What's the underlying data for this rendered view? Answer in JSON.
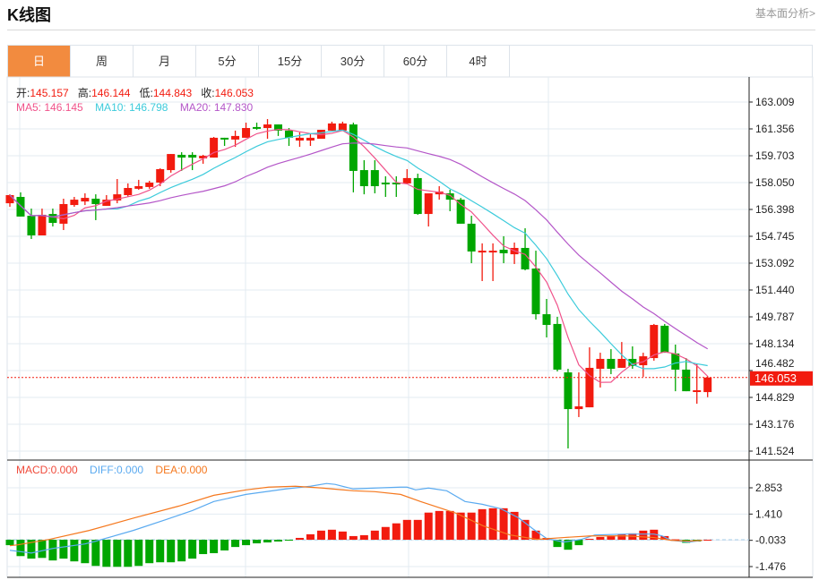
{
  "header": {
    "title": "K线图",
    "link": "基本面分析>"
  },
  "tabs": [
    {
      "label": "日",
      "active": true
    },
    {
      "label": "周"
    },
    {
      "label": "月"
    },
    {
      "label": "5分"
    },
    {
      "label": "15分"
    },
    {
      "label": "30分"
    },
    {
      "label": "60分"
    },
    {
      "label": "4时"
    }
  ],
  "ohlc_legend": {
    "open_label": "开:",
    "open": "145.157",
    "high_label": "高:",
    "high": "146.144",
    "low_label": "低:",
    "low": "144.843",
    "close_label": "收:",
    "close": "146.053"
  },
  "ma_legend": {
    "ma5": "MA5: 146.145",
    "ma10": "MA10: 146.798",
    "ma20": "MA20: 147.830"
  },
  "macd_legend": {
    "macd": "MACD:0.000",
    "diff": "DIFF:0.000",
    "dea": "DEA:0.000"
  },
  "colors": {
    "up": "#f21b0f",
    "down": "#00a600",
    "ma5": "#f0528a",
    "ma10": "#3ccbdb",
    "ma20": "#b456c8",
    "dif": "#5aaaf0",
    "dea": "#f5781e",
    "accent": "#f28b3f"
  },
  "chart_data": {
    "type": "candlestick",
    "price_ticks": [
      "163.009",
      "161.356",
      "159.703",
      "158.050",
      "156.398",
      "154.745",
      "153.092",
      "151.440",
      "149.787",
      "148.134",
      "146.482",
      "144.829",
      "143.176",
      "141.524"
    ],
    "price_range": [
      141.524,
      163.009
    ],
    "current_price": "146.053",
    "macd_ticks": [
      "2.853",
      "1.410",
      "-0.033",
      "-1.476"
    ],
    "macd_range": [
      -1.476,
      2.853
    ],
    "candles": [
      [
        156.78,
        157.33,
        156.56,
        157.28
      ],
      [
        157.17,
        157.45,
        155.96,
        155.96
      ],
      [
        156.01,
        156.45,
        154.58,
        154.8
      ],
      [
        154.8,
        156.45,
        154.8,
        156.07
      ],
      [
        156.12,
        156.45,
        155.35,
        155.57
      ],
      [
        155.52,
        157.06,
        155.13,
        156.73
      ],
      [
        156.67,
        157.17,
        156.56,
        157.0
      ],
      [
        156.89,
        157.39,
        156.67,
        157.11
      ],
      [
        157.06,
        157.33,
        155.74,
        156.73
      ],
      [
        156.62,
        157.28,
        156.62,
        157.0
      ],
      [
        156.95,
        158.27,
        156.78,
        157.33
      ],
      [
        157.28,
        158.0,
        157.17,
        157.72
      ],
      [
        157.67,
        158.22,
        157.61,
        157.83
      ],
      [
        157.78,
        158.16,
        157.67,
        158.05
      ],
      [
        158.05,
        158.93,
        157.83,
        158.88
      ],
      [
        158.82,
        159.81,
        158.66,
        159.81
      ],
      [
        159.76,
        159.92,
        158.77,
        159.59
      ],
      [
        159.76,
        159.92,
        158.82,
        159.59
      ],
      [
        159.54,
        159.76,
        159.21,
        159.7
      ],
      [
        159.59,
        160.86,
        159.59,
        160.81
      ],
      [
        160.81,
        160.81,
        160.31,
        160.75
      ],
      [
        160.7,
        161.25,
        160.25,
        160.92
      ],
      [
        160.81,
        161.74,
        160.81,
        161.41
      ],
      [
        161.47,
        161.74,
        161.3,
        161.41
      ],
      [
        161.41,
        161.96,
        160.75,
        161.63
      ],
      [
        161.63,
        161.63,
        160.92,
        161.25
      ],
      [
        161.25,
        161.41,
        160.31,
        160.81
      ],
      [
        160.64,
        161.14,
        160.25,
        160.81
      ],
      [
        160.64,
        161.08,
        160.31,
        160.81
      ],
      [
        160.75,
        161.3,
        160.75,
        161.3
      ],
      [
        161.25,
        161.8,
        161.25,
        161.69
      ],
      [
        161.25,
        161.8,
        161.25,
        161.69
      ],
      [
        161.63,
        161.74,
        157.45,
        158.77
      ],
      [
        158.82,
        159.43,
        157.33,
        157.83
      ],
      [
        158.82,
        159.43,
        157.39,
        157.83
      ],
      [
        158.05,
        158.44,
        157.17,
        157.94
      ],
      [
        158.05,
        158.44,
        157.17,
        157.94
      ],
      [
        158.0,
        158.88,
        158.0,
        158.33
      ],
      [
        158.33,
        158.6,
        156.07,
        156.12
      ],
      [
        156.12,
        157.39,
        155.35,
        157.39
      ],
      [
        157.33,
        157.83,
        157.0,
        157.5
      ],
      [
        157.39,
        157.61,
        156.29,
        157.0
      ],
      [
        157.0,
        157.11,
        155.52,
        155.52
      ],
      [
        155.52,
        156.01,
        153.09,
        153.81
      ],
      [
        153.75,
        154.31,
        151.99,
        153.86
      ],
      [
        153.75,
        154.31,
        151.99,
        153.86
      ],
      [
        153.92,
        154.75,
        153.09,
        153.7
      ],
      [
        153.64,
        154.36,
        153.04,
        154.03
      ],
      [
        154.03,
        155.24,
        152.65,
        152.71
      ],
      [
        152.76,
        153.86,
        149.62,
        149.95
      ],
      [
        149.95,
        150.89,
        148.52,
        149.29
      ],
      [
        149.35,
        149.79,
        146.43,
        146.54
      ],
      [
        146.37,
        146.59,
        141.69,
        144.11
      ],
      [
        144.11,
        146.37,
        143.62,
        144.28
      ],
      [
        144.22,
        147.91,
        144.22,
        146.65
      ],
      [
        146.59,
        147.58,
        145.44,
        147.2
      ],
      [
        147.2,
        147.8,
        146.26,
        146.59
      ],
      [
        146.65,
        148.24,
        146.65,
        147.2
      ],
      [
        147.2,
        147.97,
        146.59,
        146.76
      ],
      [
        146.81,
        147.58,
        146.1,
        147.36
      ],
      [
        147.25,
        149.35,
        147.09,
        149.29
      ],
      [
        149.24,
        149.35,
        147.58,
        147.58
      ],
      [
        147.53,
        148.08,
        145.21,
        146.54
      ],
      [
        146.54,
        147.25,
        145.21,
        145.21
      ],
      [
        145.16,
        146.87,
        144.44,
        145.27
      ],
      [
        145.157,
        146.144,
        144.843,
        146.053
      ]
    ],
    "macd_hist": [
      -0.3,
      -0.9,
      -1.04,
      -1.0,
      -1.14,
      -1.04,
      -1.19,
      -1.29,
      -1.44,
      -1.49,
      -1.49,
      -1.49,
      -1.44,
      -1.29,
      -1.24,
      -1.24,
      -1.19,
      -1.04,
      -0.79,
      -0.74,
      -0.59,
      -0.4,
      -0.3,
      -0.2,
      -0.15,
      -0.1,
      -0.03,
      0.1,
      0.3,
      0.5,
      0.55,
      0.45,
      0.2,
      0.25,
      0.5,
      0.7,
      0.9,
      1.09,
      1.09,
      1.49,
      1.58,
      1.58,
      1.49,
      1.49,
      1.68,
      1.73,
      1.73,
      1.53,
      1.09,
      0.5,
      0.1,
      -0.4,
      -0.55,
      -0.3,
      0.05,
      0.15,
      0.2,
      0.3,
      0.35,
      0.5,
      0.55,
      0.2,
      0.02,
      -0.17,
      -0.1,
      0.0
    ],
    "dif": [
      [
        0,
        -0.58
      ],
      [
        2,
        -0.73
      ],
      [
        4,
        -0.48
      ],
      [
        7,
        -0.23
      ],
      [
        8,
        -0.08
      ],
      [
        11.5,
        0.51
      ],
      [
        14.5,
        1.1
      ],
      [
        17,
        1.6
      ],
      [
        19,
        2.1
      ],
      [
        22,
        2.49
      ],
      [
        25.7,
        2.79
      ],
      [
        28,
        2.94
      ],
      [
        29.5,
        3.09
      ],
      [
        30.3,
        3.04
      ],
      [
        32,
        2.79
      ],
      [
        34,
        2.84
      ],
      [
        36.4,
        2.89
      ],
      [
        37,
        2.89
      ],
      [
        37.8,
        2.74
      ],
      [
        39,
        2.84
      ],
      [
        40.7,
        2.69
      ],
      [
        42.4,
        2.1
      ],
      [
        44,
        1.95
      ],
      [
        45.75,
        1.7
      ],
      [
        47.4,
        1.2
      ],
      [
        48.7,
        0.61
      ],
      [
        50,
        0.07
      ],
      [
        51.6,
        -0.13
      ],
      [
        53.25,
        0.02
      ],
      [
        54.5,
        0.26
      ],
      [
        57.4,
        0.31
      ],
      [
        60,
        0.31
      ],
      [
        60.75,
        0.21
      ],
      [
        61.6,
        -0.03
      ],
      [
        63.25,
        -0.13
      ],
      [
        64.5,
        -0.03
      ]
    ],
    "dea": [
      [
        0,
        -0.33
      ],
      [
        0.75,
        -0.28
      ],
      [
        3.7,
        0.02
      ],
      [
        7.4,
        0.51
      ],
      [
        11.6,
        1.2
      ],
      [
        15.75,
        1.85
      ],
      [
        19,
        2.44
      ],
      [
        22,
        2.74
      ],
      [
        24.1,
        2.89
      ],
      [
        26.6,
        2.94
      ],
      [
        29.1,
        2.84
      ],
      [
        32,
        2.69
      ],
      [
        34,
        2.64
      ],
      [
        36.4,
        2.49
      ],
      [
        38.25,
        2.1
      ],
      [
        41.6,
        1.45
      ],
      [
        44.1,
        0.76
      ],
      [
        46.6,
        0.26
      ],
      [
        49.1,
        0.02
      ],
      [
        51.6,
        0.12
      ],
      [
        54.1,
        0.21
      ],
      [
        57.4,
        0.21
      ],
      [
        60,
        0.12
      ],
      [
        61.6,
        -0.03
      ],
      [
        63.25,
        -0.08
      ],
      [
        64.5,
        -0.03
      ]
    ]
  }
}
